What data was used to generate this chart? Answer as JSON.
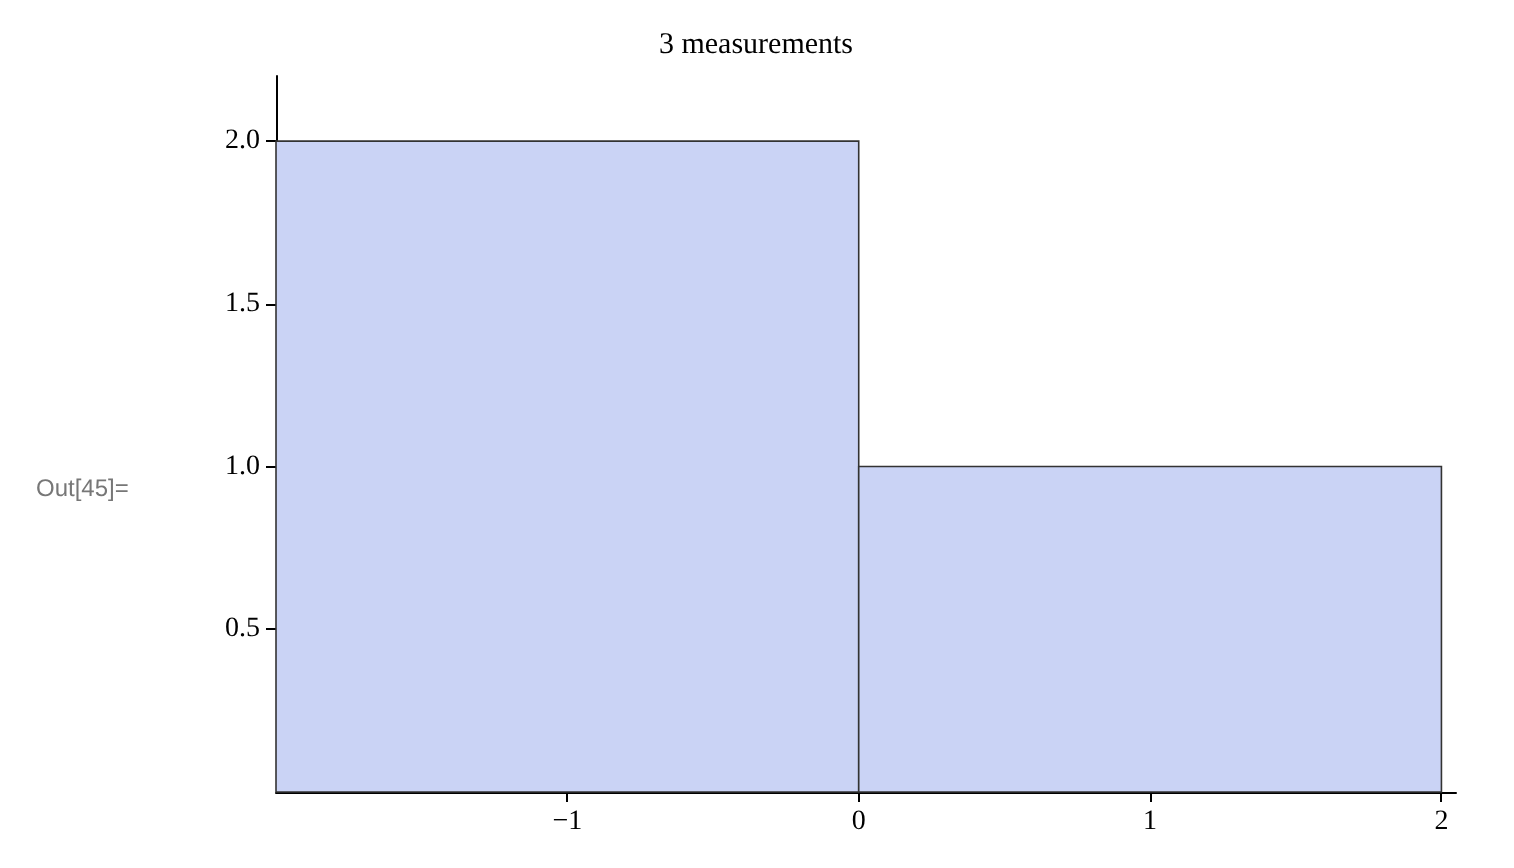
{
  "chart_data": {
    "type": "histogram",
    "title": "3 measurements",
    "bins": [
      -2,
      0,
      2
    ],
    "values": [
      2,
      1
    ],
    "color": "#cad3f5",
    "xlim": [
      -2,
      2.05
    ],
    "xticks": [
      {
        "value": -1,
        "label": "−1"
      },
      0,
      1,
      2
    ],
    "ylim": [
      0,
      2.2
    ],
    "yticks": [
      {
        "value": 0.5,
        "label": "0.5"
      },
      {
        "value": 1,
        "label": "1.0"
      },
      {
        "value": 1.5,
        "label": "1.5"
      },
      {
        "value": 2,
        "label": "2.0"
      }
    ],
    "grid": false,
    "annotations": [
      "Out[45]="
    ]
  }
}
